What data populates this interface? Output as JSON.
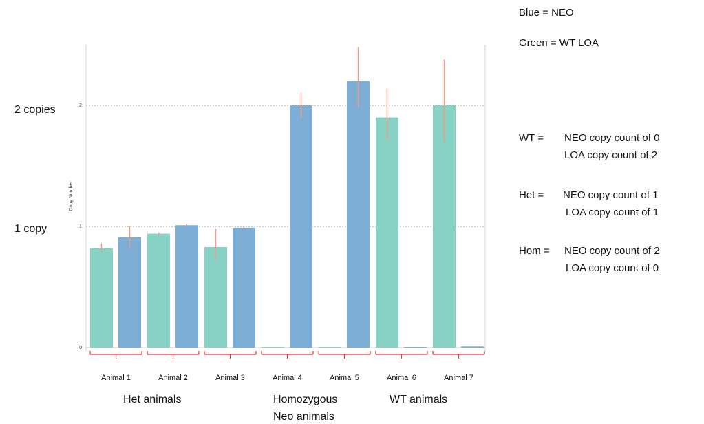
{
  "chart_data": {
    "type": "bar",
    "ylabel": "Copy Number",
    "ylim": [
      0,
      2.5
    ],
    "yticks": [
      0,
      1,
      2
    ],
    "grid": "dashed horizontal at 1 and 2",
    "categories": [
      "Animal 1",
      "Animal 2",
      "Animal 3",
      "Animal 4",
      "Animal 5",
      "Animal 6",
      "Animal 7"
    ],
    "series": [
      {
        "color": "#88d1c5",
        "values": [
          0.82,
          0.94,
          0.83,
          0.0,
          0.0,
          1.9,
          2.0
        ],
        "error_low": [
          0.79,
          0.92,
          0.72,
          0.0,
          0.0,
          1.71,
          1.7
        ],
        "error_high": [
          0.86,
          0.95,
          0.98,
          0.0,
          0.0,
          2.14,
          2.38
        ]
      },
      {
        "color": "#7eaed6",
        "values": [
          0.91,
          1.01,
          0.99,
          2.0,
          2.2,
          0.0,
          0.01
        ],
        "error_low": [
          0.83,
          1.0,
          0.98,
          1.9,
          1.98,
          0.0,
          0.0
        ],
        "error_high": [
          1.0,
          1.02,
          1.0,
          2.1,
          2.48,
          0.0,
          0.0
        ]
      }
    ],
    "error_bar_color": "#f29a82",
    "bracket_color": "#e03030"
  },
  "side_labels": {
    "two": "2 copies",
    "one": "1 copy"
  },
  "legend": {
    "blue": "Blue = NEO",
    "green": "Green = WT LOA"
  },
  "definitions": [
    {
      "head": "WT =",
      "line1": "NEO copy count of 0",
      "line2": "LOA copy count of 2"
    },
    {
      "head": "Het =",
      "line1": "NEO copy count of 1",
      "line2": "LOA copy count of 1"
    },
    {
      "head": "Hom =",
      "line1": "NEO copy count of 2",
      "line2": "LOA copy count of 0"
    }
  ],
  "groups": {
    "het": "Het animals",
    "hom_line1": "Homozygous",
    "hom_line2": "Neo animals",
    "wt": "WT animals"
  }
}
